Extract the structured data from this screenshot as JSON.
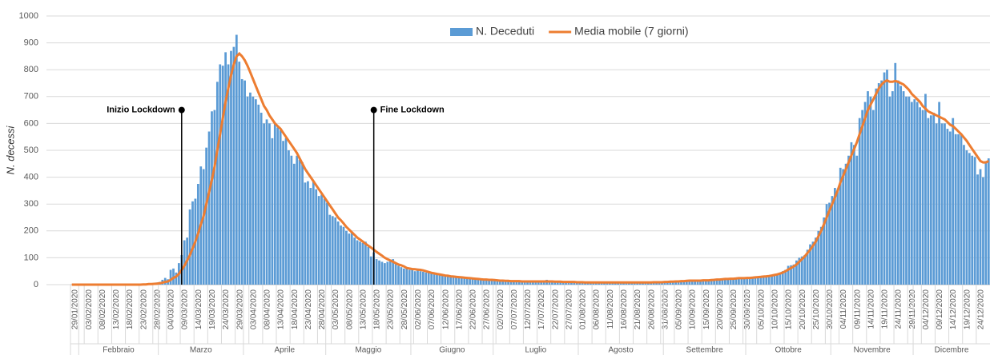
{
  "chart_data": {
    "type": "bar",
    "y_label": "N. decessi",
    "ylim": [
      0,
      1000
    ],
    "yticks": [
      0,
      100,
      200,
      300,
      400,
      500,
      600,
      700,
      800,
      900,
      1000
    ],
    "categories": [
      "29/01/2020",
      null,
      null,
      null,
      null,
      "03/02/2020",
      null,
      null,
      null,
      null,
      "08/02/2020",
      null,
      null,
      null,
      null,
      "13/02/2020",
      null,
      null,
      null,
      null,
      "18/02/2020",
      null,
      null,
      null,
      null,
      "23/02/2020",
      null,
      null,
      null,
      null,
      "28/02/2020",
      null,
      null,
      null,
      null,
      "04/03/2020",
      null,
      null,
      null,
      null,
      "09/03/2020",
      null,
      null,
      null,
      null,
      "14/03/2020",
      null,
      null,
      null,
      null,
      "19/03/2020",
      null,
      null,
      null,
      null,
      "24/03/2020",
      null,
      null,
      null,
      null,
      "29/03/2020",
      null,
      null,
      null,
      null,
      "03/04/2020",
      null,
      null,
      null,
      null,
      "08/04/2020",
      null,
      null,
      null,
      null,
      "13/04/2020",
      null,
      null,
      null,
      null,
      "18/04/2020",
      null,
      null,
      null,
      null,
      "23/04/2020",
      null,
      null,
      null,
      null,
      "28/04/2020",
      null,
      null,
      null,
      null,
      "03/05/2020",
      null,
      null,
      null,
      null,
      "08/05/2020",
      null,
      null,
      null,
      null,
      "13/05/2020",
      null,
      null,
      null,
      null,
      "18/05/2020",
      null,
      null,
      null,
      null,
      "23/05/2020",
      null,
      null,
      null,
      null,
      "28/05/2020",
      null,
      null,
      null,
      null,
      "02/06/2020",
      null,
      null,
      null,
      null,
      "07/06/2020",
      null,
      null,
      null,
      null,
      "12/06/2020",
      null,
      null,
      null,
      null,
      "17/06/2020",
      null,
      null,
      null,
      null,
      "22/06/2020",
      null,
      null,
      null,
      null,
      "27/06/2020",
      null,
      null,
      null,
      null,
      "02/07/2020",
      null,
      null,
      null,
      null,
      "07/07/2020",
      null,
      null,
      null,
      null,
      "12/07/2020",
      null,
      null,
      null,
      null,
      "17/07/2020",
      null,
      null,
      null,
      null,
      "22/07/2020",
      null,
      null,
      null,
      null,
      "27/07/2020",
      null,
      null,
      null,
      null,
      "01/08/2020",
      null,
      null,
      null,
      null,
      "06/08/2020",
      null,
      null,
      null,
      null,
      "11/08/2020",
      null,
      null,
      null,
      null,
      "16/08/2020",
      null,
      null,
      null,
      null,
      "21/08/2020",
      null,
      null,
      null,
      null,
      "26/08/2020",
      null,
      null,
      null,
      null,
      "31/08/2020",
      null,
      null,
      null,
      null,
      "05/09/2020",
      null,
      null,
      null,
      null,
      "10/09/2020",
      null,
      null,
      null,
      null,
      "15/09/2020",
      null,
      null,
      null,
      null,
      "20/09/2020",
      null,
      null,
      null,
      null,
      "25/09/2020",
      null,
      null,
      null,
      null,
      "30/09/2020",
      null,
      null,
      null,
      null,
      "05/10/2020",
      null,
      null,
      null,
      null,
      "10/10/2020",
      null,
      null,
      null,
      null,
      "15/10/2020",
      null,
      null,
      null,
      null,
      "20/10/2020",
      null,
      null,
      null,
      null,
      "25/10/2020",
      null,
      null,
      null,
      null,
      "30/10/2020",
      null,
      null,
      null,
      null,
      "04/11/2020",
      null,
      null,
      null,
      null,
      "09/11/2020",
      null,
      null,
      null,
      null,
      "14/11/2020",
      null,
      null,
      null,
      null,
      "19/11/2020",
      null,
      null,
      null,
      null,
      "24/11/2020",
      null,
      null,
      null,
      null,
      "29/11/2020",
      null,
      null,
      null,
      null,
      "04/12/2020",
      null,
      null,
      null,
      null,
      "09/12/2020",
      null,
      null,
      null,
      null,
      "14/12/2020",
      null,
      null,
      null,
      null,
      "19/12/2020",
      null,
      null,
      null,
      null,
      "24/12/2020",
      null,
      null,
      null,
      null
    ],
    "months": [
      "Febbraio",
      "Marzo",
      "Aprile",
      "Maggio",
      "Giugno",
      "Luglio",
      "Agosto",
      "Settembre",
      "Ottobre",
      "Novembre",
      "Dicembre"
    ],
    "series": [
      {
        "name": "N. Deceduti",
        "type": "bar",
        "color": "#5b9bd5",
        "values": [
          0,
          0,
          0,
          0,
          0,
          0,
          0,
          0,
          0,
          0,
          0,
          0,
          0,
          0,
          0,
          0,
          0,
          0,
          0,
          0,
          0,
          0,
          0,
          1,
          1,
          1,
          3,
          4,
          3,
          5,
          4,
          8,
          10,
          18,
          25,
          20,
          55,
          60,
          45,
          80,
          110,
          165,
          175,
          280,
          310,
          320,
          375,
          440,
          430,
          510,
          570,
          645,
          650,
          755,
          820,
          815,
          865,
          820,
          870,
          885,
          930,
          830,
          765,
          760,
          700,
          715,
          700,
          690,
          670,
          640,
          600,
          615,
          600,
          545,
          600,
          585,
          575,
          535,
          545,
          500,
          480,
          450,
          480,
          465,
          455,
          380,
          385,
          360,
          385,
          355,
          330,
          335,
          320,
          305,
          260,
          255,
          250,
          235,
          220,
          215,
          200,
          190,
          195,
          175,
          165,
          160,
          155,
          160,
          140,
          105,
          120,
          95,
          90,
          85,
          80,
          85,
          90,
          95,
          80,
          70,
          65,
          60,
          65,
          55,
          55,
          50,
          60,
          50,
          48,
          45,
          45,
          42,
          40,
          38,
          38,
          35,
          35,
          33,
          30,
          30,
          28,
          28,
          27,
          26,
          25,
          25,
          24,
          22,
          22,
          20,
          20,
          20,
          18,
          18,
          17,
          16,
          15,
          15,
          14,
          14,
          13,
          13,
          12,
          12,
          12,
          12,
          13,
          12,
          12,
          11,
          11,
          11,
          12,
          18,
          11,
          10,
          10,
          10,
          11,
          10,
          10,
          9,
          9,
          9,
          9,
          8,
          8,
          8,
          8,
          8,
          7,
          7,
          7,
          7,
          7,
          7,
          8,
          8,
          7,
          7,
          7,
          7,
          8,
          8,
          8,
          8,
          8,
          8,
          8,
          8,
          8,
          9,
          9,
          9,
          9,
          10,
          10,
          11,
          12,
          12,
          12,
          14,
          15,
          15,
          16,
          18,
          14,
          14,
          13,
          14,
          15,
          16,
          17,
          18,
          18,
          20,
          20,
          22,
          22,
          22,
          23,
          22,
          24,
          25,
          25,
          24,
          24,
          25,
          26,
          27,
          28,
          30,
          30,
          32,
          34,
          36,
          38,
          40,
          45,
          50,
          55,
          70,
          72,
          75,
          90,
          100,
          105,
          110,
          130,
          150,
          160,
          175,
          200,
          215,
          250,
          300,
          305,
          330,
          360,
          355,
          435,
          430,
          450,
          480,
          530,
          520,
          480,
          620,
          650,
          680,
          720,
          700,
          650,
          730,
          750,
          760,
          790,
          800,
          700,
          720,
          825,
          760,
          740,
          720,
          700,
          700,
          680,
          690,
          680,
          660,
          650,
          710,
          620,
          630,
          640,
          600,
          680,
          600,
          600,
          580,
          570,
          620,
          560,
          560,
          560,
          520,
          500,
          490,
          480,
          475,
          410,
          430,
          400,
          460,
          470
        ]
      },
      {
        "name": "Media mobile (7 giorni)",
        "type": "line",
        "color": "#ed7d31",
        "values": [
          0,
          0,
          0,
          0,
          0,
          0,
          0,
          0,
          0,
          0,
          0,
          0,
          0,
          0,
          0,
          0,
          0,
          0,
          0,
          0,
          0,
          0,
          0,
          0,
          0,
          0,
          1,
          1,
          2,
          2,
          3,
          4,
          5,
          7,
          10,
          12,
          18,
          25,
          30,
          40,
          55,
          70,
          90,
          110,
          135,
          160,
          190,
          225,
          255,
          300,
          345,
          390,
          440,
          500,
          560,
          620,
          680,
          730,
          780,
          820,
          850,
          860,
          850,
          835,
          815,
          790,
          765,
          740,
          715,
          690,
          665,
          650,
          630,
          615,
          600,
          590,
          580,
          565,
          550,
          535,
          520,
          505,
          490,
          470,
          450,
          430,
          415,
          400,
          385,
          370,
          355,
          340,
          325,
          310,
          295,
          280,
          265,
          250,
          240,
          228,
          215,
          205,
          195,
          185,
          175,
          168,
          160,
          152,
          145,
          138,
          130,
          122,
          115,
          108,
          100,
          95,
          90,
          85,
          80,
          75,
          72,
          68,
          62,
          60,
          58,
          57,
          56,
          55,
          53,
          50,
          47,
          44,
          42,
          40,
          38,
          36,
          34,
          33,
          31,
          30,
          29,
          28,
          27,
          26,
          25,
          24,
          23,
          22,
          21,
          20,
          19,
          19,
          18,
          18,
          17,
          16,
          15,
          15,
          14,
          14,
          13,
          13,
          13,
          13,
          12,
          12,
          12,
          12,
          12,
          12,
          12,
          12,
          12,
          12,
          12,
          12,
          11,
          11,
          11,
          10,
          10,
          10,
          10,
          10,
          9,
          9,
          9,
          8,
          8,
          8,
          8,
          8,
          8,
          8,
          8,
          8,
          8,
          8,
          8,
          8,
          8,
          8,
          8,
          8,
          8,
          8,
          8,
          8,
          8,
          8,
          8,
          8,
          9,
          9,
          9,
          9,
          10,
          10,
          11,
          11,
          12,
          12,
          13,
          13,
          14,
          15,
          15,
          15,
          15,
          15,
          16,
          16,
          16,
          17,
          18,
          19,
          19,
          20,
          21,
          21,
          22,
          22,
          23,
          24,
          24,
          24,
          25,
          25,
          26,
          27,
          28,
          29,
          30,
          31,
          32,
          34,
          36,
          38,
          41,
          45,
          50,
          56,
          62,
          68,
          75,
          85,
          95,
          105,
          118,
          130,
          145,
          160,
          180,
          200,
          225,
          250,
          275,
          300,
          325,
          350,
          380,
          405,
          430,
          455,
          480,
          505,
          530,
          560,
          590,
          620,
          650,
          670,
          690,
          710,
          730,
          745,
          755,
          760,
          755,
          755,
          758,
          755,
          750,
          745,
          735,
          725,
          710,
          700,
          690,
          680,
          665,
          655,
          645,
          640,
          635,
          630,
          625,
          620,
          615,
          605,
          595,
          590,
          580,
          570,
          560,
          548,
          535,
          520,
          505,
          490,
          475,
          460,
          455,
          455,
          460
        ]
      }
    ],
    "annotations": [
      {
        "label": "Inizio Lockdown",
        "date": "09/03/2020",
        "value": 650
      },
      {
        "label": "Fine Lockdown",
        "date": "18/05/2020",
        "value": 650
      }
    ],
    "grid": true
  }
}
